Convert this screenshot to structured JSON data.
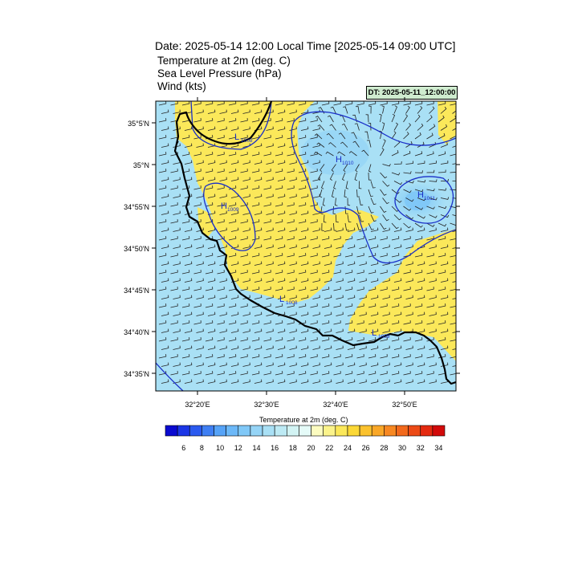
{
  "header": {
    "title": "Date: 2025-05-14  12:00 Local Time [2025-05-14  09:00 UTC]",
    "line1": "Temperature at 2m   (deg. C)",
    "line2": "Sea Level Pressure   (hPa)",
    "line3": "Wind   (kts)",
    "dt_badge": "DT: 2025-05-11_12:00:00"
  },
  "axes": {
    "lat_labels": [
      "35°5'N",
      "35°N",
      "34°55'N",
      "34°50'N",
      "34°45'N",
      "34°40'N",
      "34°35'N"
    ],
    "lon_labels": [
      "32°20'E",
      "32°30'E",
      "32°40'E",
      "32°50'E"
    ]
  },
  "pressure_labels": [
    {
      "letter": "L",
      "value": "1008"
    },
    {
      "letter": "H",
      "value": "1010"
    },
    {
      "letter": "H",
      "value": "1011"
    },
    {
      "letter": "H",
      "value": "1009"
    },
    {
      "letter": "L",
      "value": "1008"
    },
    {
      "letter": "L",
      "value": "1009"
    }
  ],
  "colorbar": {
    "title": "Temperature at 2m  (deg. C)",
    "tick_labels": [
      "6",
      "8",
      "10",
      "12",
      "14",
      "16",
      "18",
      "20",
      "22",
      "24",
      "26",
      "28",
      "30",
      "32",
      "34"
    ],
    "colors": [
      "#0a0ad0",
      "#1b36e6",
      "#2b5aef",
      "#3f7ff3",
      "#56a3f7",
      "#6cb8f8",
      "#80c8f7",
      "#95d4f6",
      "#a9e0f5",
      "#bdeaf4",
      "#d2f3f3",
      "#e5fbf8",
      "#fcfcc0",
      "#fbf38b",
      "#fbe85a",
      "#fbd836",
      "#fbc22e",
      "#f9a728",
      "#f78822",
      "#f2691c",
      "#ec4a16",
      "#e42a10",
      "#d20a0a"
    ]
  },
  "field_colors": {
    "cool": "#a9e0f5",
    "cooler": "#95d4f6",
    "warm": "#fbe85a",
    "isobar": "#1a2fc8",
    "coast": "#000000"
  }
}
